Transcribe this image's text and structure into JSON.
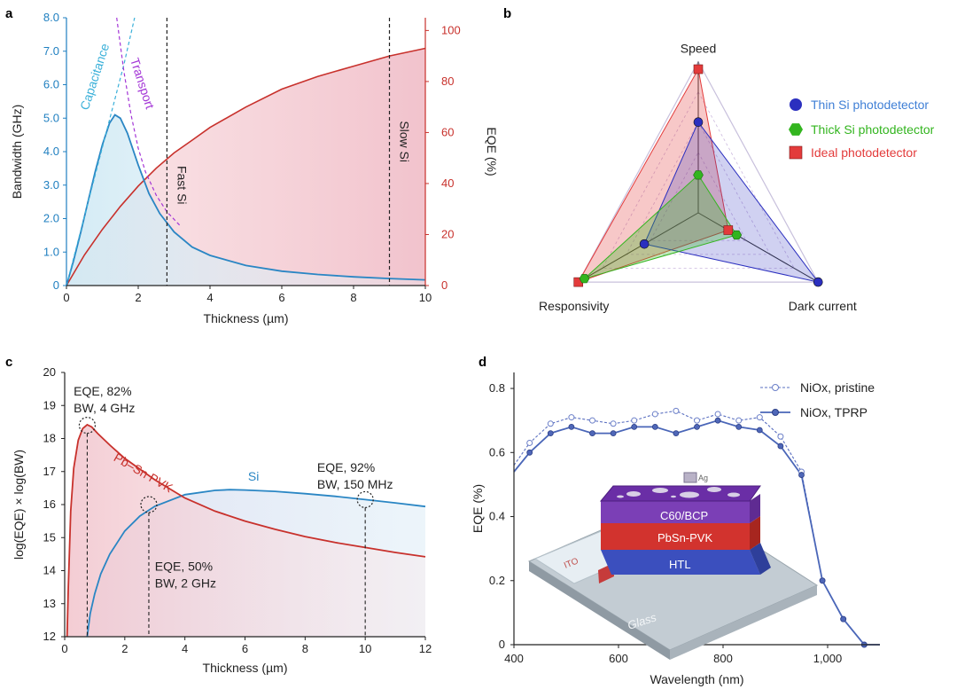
{
  "colors": {
    "blue": "#2a86c4",
    "red": "#c8312c",
    "purple": "#a335d6",
    "thin": "#2b2fbf",
    "thick": "#33b51f",
    "ideal": "#e33b3b",
    "axis": "#222222",
    "bw_axis": "#1f7fc0",
    "eqe_axis": "#c8312c"
  },
  "panels": {
    "a": "a",
    "b": "b",
    "c": "c",
    "d": "d"
  },
  "chart_data": [
    {
      "panel": "a",
      "type": "line",
      "xlabel": "Thickness (µm)",
      "ylabel": "Bandwidth (GHz)",
      "y2label": "EQE (%)",
      "xlim": [
        0,
        10
      ],
      "ylim": [
        0,
        8
      ],
      "y2lim": [
        0,
        105
      ],
      "xticks": [
        0,
        2,
        4,
        6,
        8,
        10
      ],
      "xtick_labels": [
        "0",
        "2",
        "4",
        "6",
        "8",
        "10"
      ],
      "yticks": [
        0,
        1,
        2,
        3,
        4,
        5,
        6,
        7,
        8
      ],
      "ytick_labels": [
        "0",
        "1.0",
        "2.0",
        "3.0",
        "4.0",
        "5.0",
        "6.0",
        "7.0",
        "8.0"
      ],
      "y2ticks": [
        0,
        20,
        40,
        60,
        80,
        100
      ],
      "y2tick_labels": [
        "0",
        "20",
        "40",
        "60",
        "80",
        "100"
      ],
      "annotations": [
        {
          "text": "Capacitance",
          "x": 0.9,
          "y": 6.2
        },
        {
          "text": "Transport",
          "x": 2.0,
          "y": 6.0
        },
        {
          "text": "Fast Si",
          "x": 3.1,
          "y": 3.0
        },
        {
          "text": "Slow Si",
          "x": 9.3,
          "y": 4.3
        }
      ],
      "vlines": [
        2.8,
        9.0
      ],
      "series": [
        {
          "name": "Bandwidth",
          "axis": "left",
          "x": [
            0,
            0.2,
            0.4,
            0.6,
            0.8,
            1.0,
            1.2,
            1.35,
            1.5,
            1.7,
            2.0,
            2.3,
            2.6,
            3.0,
            3.5,
            4.0,
            5.0,
            6.0,
            7.0,
            8.0,
            9.0,
            10.0
          ],
          "y": [
            0,
            0.75,
            1.6,
            2.5,
            3.4,
            4.2,
            4.85,
            5.1,
            5.0,
            4.55,
            3.6,
            2.75,
            2.15,
            1.6,
            1.15,
            0.9,
            0.6,
            0.43,
            0.33,
            0.26,
            0.21,
            0.17
          ]
        },
        {
          "name": "EQE",
          "axis": "right",
          "x": [
            0,
            0.5,
            1,
            1.5,
            2,
            2.5,
            3,
            3.5,
            4,
            5,
            6,
            7,
            8,
            9,
            10
          ],
          "y": [
            0,
            12,
            22,
            31,
            39,
            46,
            52,
            57,
            62,
            70,
            77,
            82,
            86,
            90,
            93
          ]
        },
        {
          "name": "Capacitance",
          "axis": "left",
          "dashed": true,
          "x": [
            0,
            0.4,
            0.8,
            1.2,
            1.6,
            1.9
          ],
          "y": [
            0,
            1.65,
            3.3,
            4.95,
            6.6,
            8.0
          ]
        },
        {
          "name": "Transport",
          "axis": "left",
          "dashed": true,
          "x": [
            1.4,
            1.6,
            1.8,
            2.0,
            2.2,
            2.5,
            2.8,
            3.2
          ],
          "y": [
            8.0,
            6.4,
            5.1,
            4.1,
            3.4,
            2.7,
            2.2,
            1.75
          ]
        }
      ]
    },
    {
      "panel": "b",
      "type": "radar",
      "axes": [
        "Speed",
        "Dark current",
        "Responsivity"
      ],
      "legend_position": "right",
      "series": [
        {
          "name": "Thin Si photodetector",
          "values": [
            0.6,
            1.0,
            0.45
          ]
        },
        {
          "name": "Thick Si photodetector",
          "values": [
            0.25,
            0.32,
            0.95
          ]
        },
        {
          "name": "Ideal photodetector",
          "values": [
            0.95,
            0.25,
            1.0
          ]
        }
      ]
    },
    {
      "panel": "c",
      "type": "line",
      "xlabel": "Thickness (µm)",
      "ylabel": "log(EQE) × log(BW)",
      "xlim": [
        0,
        12
      ],
      "ylim": [
        12,
        20
      ],
      "xticks": [
        0,
        2,
        4,
        6,
        8,
        10,
        12
      ],
      "xtick_labels": [
        "0",
        "2",
        "4",
        "6",
        "8",
        "10",
        "12"
      ],
      "yticks": [
        12,
        13,
        14,
        15,
        16,
        17,
        18,
        19,
        20
      ],
      "ytick_labels": [
        "12",
        "13",
        "14",
        "15",
        "16",
        "17",
        "18",
        "19",
        "20"
      ],
      "series": [
        {
          "name": "Pb–Sn PVK",
          "x": [
            0.08,
            0.12,
            0.2,
            0.3,
            0.45,
            0.6,
            0.75,
            0.9,
            1.1,
            1.5,
            2.0,
            3.0,
            4.0,
            5.0,
            6.0,
            7.0,
            8.0,
            9.0,
            10.0,
            11.0,
            12.0
          ],
          "y": [
            12.0,
            13.5,
            15.8,
            17.1,
            17.95,
            18.3,
            18.42,
            18.35,
            18.15,
            17.8,
            17.4,
            16.75,
            16.2,
            15.8,
            15.5,
            15.25,
            15.03,
            14.85,
            14.7,
            14.55,
            14.42
          ]
        },
        {
          "name": "Si",
          "x": [
            0.75,
            0.85,
            1.0,
            1.2,
            1.5,
            2.0,
            2.5,
            3.0,
            4.0,
            5.0,
            5.5,
            6.0,
            7.0,
            8.0,
            9.0,
            10.0,
            11.0,
            12.0
          ],
          "y": [
            12.0,
            12.7,
            13.3,
            13.9,
            14.5,
            15.2,
            15.65,
            15.95,
            16.3,
            16.43,
            16.45,
            16.44,
            16.4,
            16.33,
            16.25,
            16.15,
            16.05,
            15.94
          ]
        }
      ],
      "markers": [
        {
          "x": 0.75,
          "y": 18.4
        },
        {
          "x": 2.8,
          "y": 16.0
        },
        {
          "x": 10.0,
          "y": 16.15
        }
      ],
      "annotations": [
        {
          "lines": [
            "EQE, 82%",
            "BW, 4 GHz"
          ],
          "x": 0.3,
          "y": 19.3
        },
        {
          "lines": [
            "EQE, 50%",
            "BW, 2 GHz"
          ],
          "x": 3.0,
          "y": 14.0
        },
        {
          "lines": [
            "EQE, 92%",
            "BW, 150 MHz"
          ],
          "x": 8.4,
          "y": 17.0
        }
      ],
      "series_labels": [
        {
          "text": "Pb–Sn PVK",
          "x": 1.6,
          "y": 17.35
        },
        {
          "text": "Si",
          "x": 6.1,
          "y": 16.72
        }
      ]
    },
    {
      "panel": "d",
      "type": "line",
      "xlabel": "Wavelength (nm)",
      "ylabel": "EQE (%)",
      "xlim": [
        400,
        1100
      ],
      "ylim": [
        0,
        0.85
      ],
      "xticks": [
        400,
        600,
        800,
        1000
      ],
      "xtick_labels": [
        "400",
        "600",
        "800",
        "1,000"
      ],
      "yticks": [
        0,
        0.2,
        0.4,
        0.6,
        0.8
      ],
      "ytick_labels": [
        "0",
        "0.2",
        "0.4",
        "0.6",
        "0.8"
      ],
      "legend_position": "top-right",
      "series": [
        {
          "name": "NiOx, pristine",
          "dashed": true,
          "x": [
            400,
            430,
            470,
            510,
            550,
            590,
            630,
            670,
            710,
            750,
            790,
            830,
            870,
            910,
            950,
            990,
            1030,
            1070,
            1100
          ],
          "y": [
            0.56,
            0.63,
            0.69,
            0.71,
            0.7,
            0.69,
            0.7,
            0.72,
            0.73,
            0.7,
            0.72,
            0.7,
            0.71,
            0.65,
            0.54,
            0.2,
            0.08,
            0.0,
            0.0
          ]
        },
        {
          "name": "NiOx, TPRP",
          "dashed": false,
          "x": [
            400,
            430,
            470,
            510,
            550,
            590,
            630,
            670,
            710,
            750,
            790,
            830,
            870,
            910,
            950,
            990,
            1030,
            1070,
            1100
          ],
          "y": [
            0.54,
            0.6,
            0.66,
            0.68,
            0.66,
            0.66,
            0.68,
            0.68,
            0.66,
            0.68,
            0.7,
            0.68,
            0.67,
            0.62,
            0.53,
            0.2,
            0.08,
            0.0,
            0.0
          ]
        }
      ]
    }
  ],
  "inset": {
    "layers": [
      "C60/BCP",
      "PbSn-PVK",
      "HTL",
      "Glass"
    ],
    "ito_label": "ITO",
    "top_label": "Ag"
  }
}
